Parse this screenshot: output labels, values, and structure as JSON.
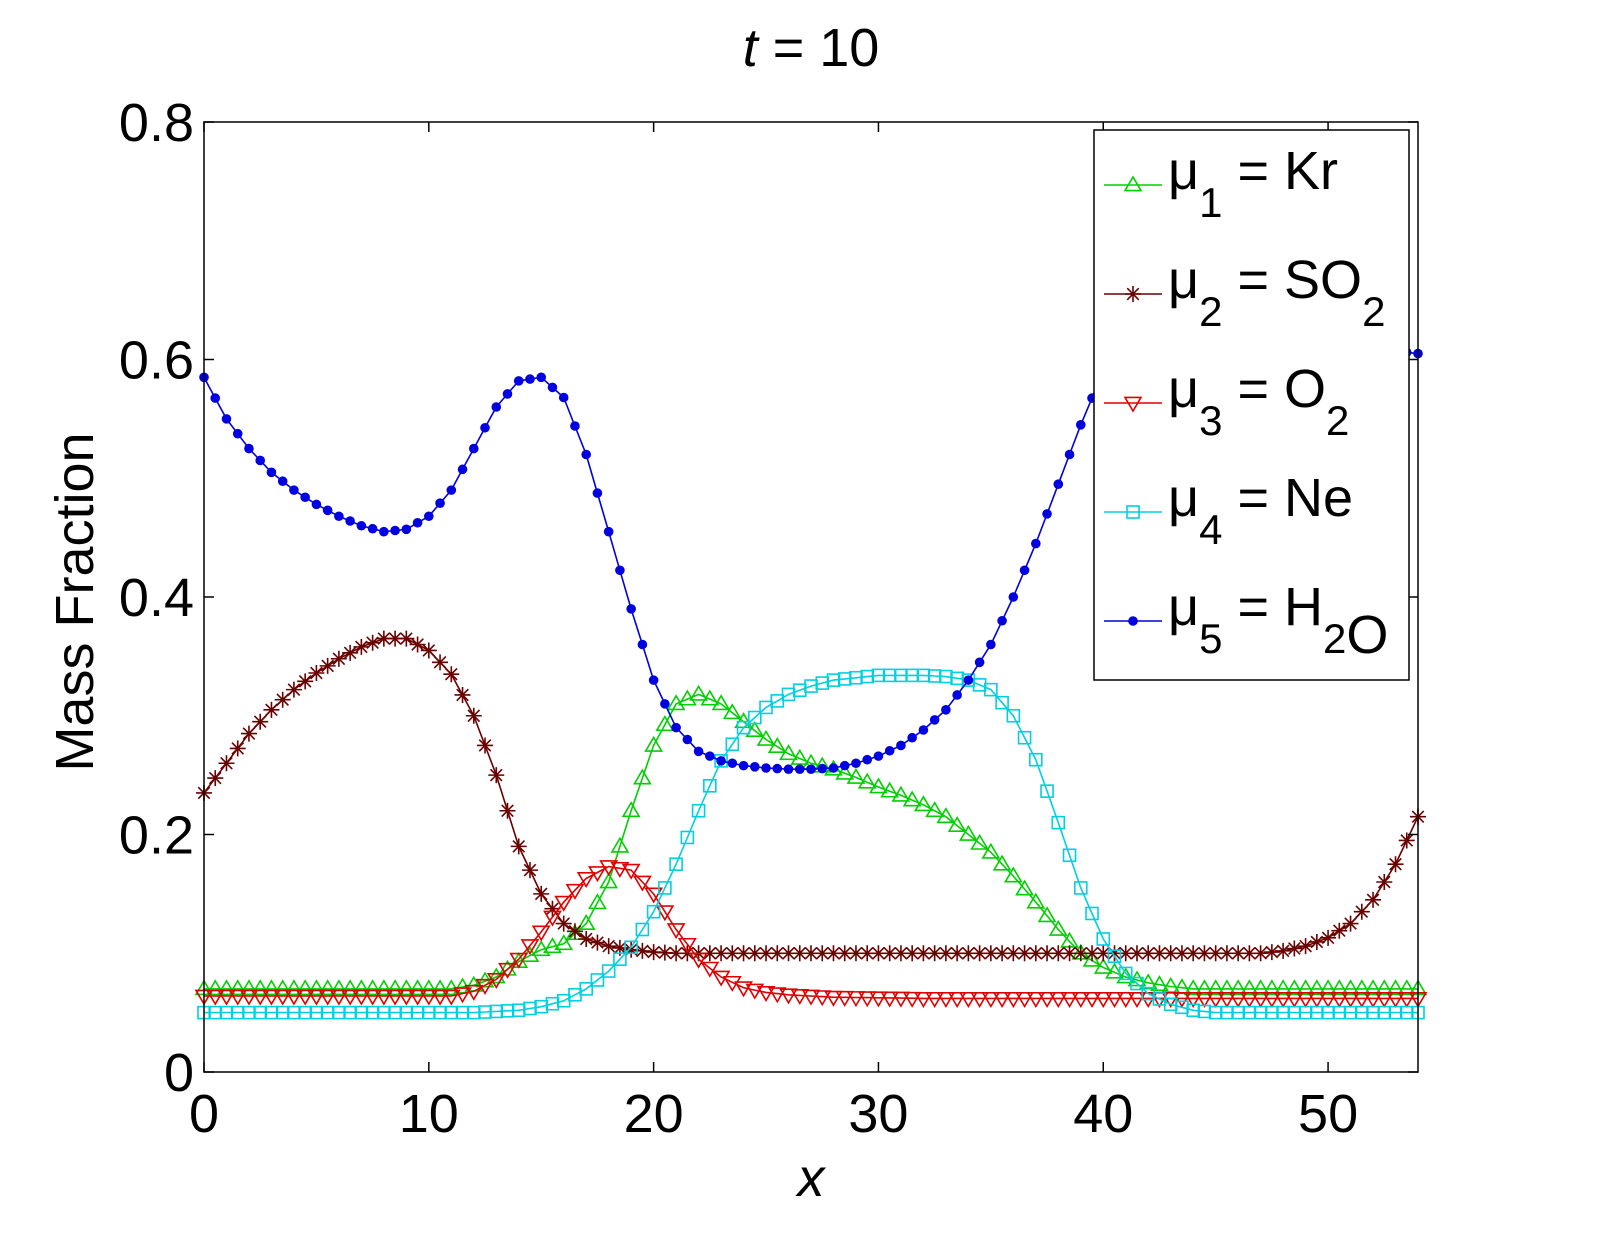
{
  "chart_data": {
    "type": "line",
    "title_var": "t",
    "title_eq": " = 10",
    "xlabel": "x",
    "ylabel": "Mass Fraction",
    "xlim": [
      0,
      54
    ],
    "ylim": [
      0,
      0.8
    ],
    "xticks": [
      "0",
      "10",
      "20",
      "30",
      "40",
      "50"
    ],
    "yticks": [
      "0",
      "0.2",
      "0.4",
      "0.6",
      "0.8"
    ],
    "grid": false,
    "legend_position": "top-right",
    "x_step": 0.5,
    "series": [
      {
        "sym": "μ",
        "sub": "1",
        "eq": " = Kr",
        "formula": [
          {
            "t": "Kr"
          }
        ],
        "color": "#00d000",
        "marker": "triangle-up",
        "points": [
          [
            0,
            0.07
          ],
          [
            11,
            0.07
          ],
          [
            12,
            0.073
          ],
          [
            13,
            0.08
          ],
          [
            14,
            0.093
          ],
          [
            15,
            0.103
          ],
          [
            16,
            0.108
          ],
          [
            17,
            0.125
          ],
          [
            18,
            0.16
          ],
          [
            19,
            0.22
          ],
          [
            20,
            0.275
          ],
          [
            21,
            0.31
          ],
          [
            22,
            0.318
          ],
          [
            23,
            0.31
          ],
          [
            24,
            0.295
          ],
          [
            25,
            0.28
          ],
          [
            26,
            0.268
          ],
          [
            27,
            0.26
          ],
          [
            28,
            0.255
          ],
          [
            29,
            0.248
          ],
          [
            30,
            0.24
          ],
          [
            31,
            0.233
          ],
          [
            32,
            0.225
          ],
          [
            33,
            0.215
          ],
          [
            34,
            0.2
          ],
          [
            35,
            0.185
          ],
          [
            36,
            0.165
          ],
          [
            37,
            0.143
          ],
          [
            38,
            0.12
          ],
          [
            39,
            0.1
          ],
          [
            40,
            0.088
          ],
          [
            41,
            0.08
          ],
          [
            42,
            0.075
          ],
          [
            43,
            0.072
          ],
          [
            44,
            0.07
          ],
          [
            54,
            0.07
          ]
        ]
      },
      {
        "sym": "μ",
        "sub": "2",
        "eq": " = SO",
        "formula": [
          {
            "t": "SO"
          },
          {
            "s": "2"
          }
        ],
        "color": "#6b0000",
        "marker": "star",
        "points": [
          [
            0,
            0.235
          ],
          [
            1,
            0.26
          ],
          [
            2,
            0.285
          ],
          [
            3,
            0.305
          ],
          [
            4,
            0.322
          ],
          [
            5,
            0.336
          ],
          [
            6,
            0.348
          ],
          [
            7,
            0.358
          ],
          [
            8,
            0.365
          ],
          [
            9,
            0.365
          ],
          [
            10,
            0.355
          ],
          [
            11,
            0.335
          ],
          [
            12,
            0.3
          ],
          [
            13,
            0.25
          ],
          [
            14,
            0.19
          ],
          [
            15,
            0.15
          ],
          [
            16,
            0.125
          ],
          [
            17,
            0.112
          ],
          [
            18,
            0.106
          ],
          [
            19,
            0.103
          ],
          [
            20,
            0.101
          ],
          [
            21,
            0.1
          ],
          [
            47,
            0.1
          ],
          [
            48,
            0.102
          ],
          [
            49,
            0.106
          ],
          [
            50,
            0.113
          ],
          [
            51,
            0.125
          ],
          [
            52,
            0.145
          ],
          [
            53,
            0.175
          ],
          [
            54,
            0.215
          ]
        ]
      },
      {
        "sym": "μ",
        "sub": "3",
        "eq": " = O",
        "formula": [
          {
            "t": "O"
          },
          {
            "s": "2"
          }
        ],
        "color": "#e00000",
        "marker": "triangle-down",
        "points": [
          [
            0,
            0.064
          ],
          [
            11,
            0.064
          ],
          [
            12,
            0.068
          ],
          [
            13,
            0.078
          ],
          [
            14,
            0.095
          ],
          [
            15,
            0.118
          ],
          [
            16,
            0.143
          ],
          [
            17,
            0.163
          ],
          [
            18,
            0.173
          ],
          [
            19,
            0.17
          ],
          [
            20,
            0.15
          ],
          [
            21,
            0.12
          ],
          [
            22,
            0.095
          ],
          [
            23,
            0.08
          ],
          [
            24,
            0.071
          ],
          [
            25,
            0.067
          ],
          [
            26,
            0.065
          ],
          [
            28,
            0.063
          ],
          [
            32,
            0.062
          ],
          [
            54,
            0.062
          ]
        ]
      },
      {
        "sym": "μ",
        "sub": "4",
        "eq": " = Ne",
        "formula": [
          {
            "t": "Ne"
          }
        ],
        "color": "#00d0e0",
        "marker": "square",
        "points": [
          [
            0,
            0.05
          ],
          [
            12,
            0.05
          ],
          [
            14,
            0.052
          ],
          [
            15,
            0.055
          ],
          [
            16,
            0.06
          ],
          [
            17,
            0.07
          ],
          [
            18,
            0.085
          ],
          [
            19,
            0.105
          ],
          [
            20,
            0.135
          ],
          [
            21,
            0.175
          ],
          [
            22,
            0.22
          ],
          [
            23,
            0.262
          ],
          [
            24,
            0.29
          ],
          [
            25,
            0.307
          ],
          [
            26,
            0.318
          ],
          [
            27,
            0.325
          ],
          [
            28,
            0.33
          ],
          [
            30,
            0.334
          ],
          [
            32,
            0.334
          ],
          [
            33,
            0.333
          ],
          [
            34,
            0.33
          ],
          [
            35,
            0.322
          ],
          [
            36,
            0.3
          ],
          [
            37,
            0.263
          ],
          [
            38,
            0.21
          ],
          [
            39,
            0.155
          ],
          [
            40,
            0.112
          ],
          [
            41,
            0.083
          ],
          [
            42,
            0.066
          ],
          [
            43,
            0.057
          ],
          [
            44,
            0.052
          ],
          [
            45,
            0.05
          ],
          [
            54,
            0.05
          ]
        ]
      },
      {
        "sym": "μ",
        "sub": "5",
        "eq": " = H",
        "formula": [
          {
            "t": "H"
          },
          {
            "s": "2"
          },
          {
            "t": "O"
          }
        ],
        "color": "#0000e0",
        "marker": "dot",
        "points": [
          [
            0,
            0.585
          ],
          [
            1,
            0.55
          ],
          [
            2,
            0.525
          ],
          [
            3,
            0.505
          ],
          [
            4,
            0.49
          ],
          [
            5,
            0.478
          ],
          [
            6,
            0.468
          ],
          [
            7,
            0.46
          ],
          [
            8,
            0.455
          ],
          [
            9,
            0.457
          ],
          [
            10,
            0.468
          ],
          [
            11,
            0.49
          ],
          [
            12,
            0.525
          ],
          [
            13,
            0.56
          ],
          [
            14,
            0.582
          ],
          [
            15,
            0.585
          ],
          [
            16,
            0.568
          ],
          [
            17,
            0.52
          ],
          [
            18,
            0.455
          ],
          [
            19,
            0.39
          ],
          [
            20,
            0.33
          ],
          [
            21,
            0.29
          ],
          [
            22,
            0.27
          ],
          [
            23,
            0.262
          ],
          [
            24,
            0.258
          ],
          [
            25,
            0.256
          ],
          [
            26,
            0.255
          ],
          [
            27,
            0.255
          ],
          [
            28,
            0.256
          ],
          [
            29,
            0.26
          ],
          [
            30,
            0.266
          ],
          [
            31,
            0.275
          ],
          [
            32,
            0.288
          ],
          [
            33,
            0.305
          ],
          [
            34,
            0.33
          ],
          [
            35,
            0.36
          ],
          [
            36,
            0.4
          ],
          [
            37,
            0.445
          ],
          [
            38,
            0.495
          ],
          [
            39,
            0.545
          ],
          [
            40,
            0.59
          ],
          [
            41,
            0.625
          ],
          [
            42,
            0.648
          ],
          [
            43,
            0.653
          ],
          [
            44,
            0.65
          ],
          [
            45,
            0.645
          ],
          [
            46,
            0.64
          ],
          [
            47,
            0.635
          ],
          [
            48,
            0.63
          ],
          [
            49,
            0.625
          ],
          [
            50,
            0.62
          ],
          [
            51,
            0.615
          ],
          [
            52,
            0.61
          ],
          [
            53,
            0.607
          ],
          [
            54,
            0.605
          ]
        ]
      }
    ]
  }
}
